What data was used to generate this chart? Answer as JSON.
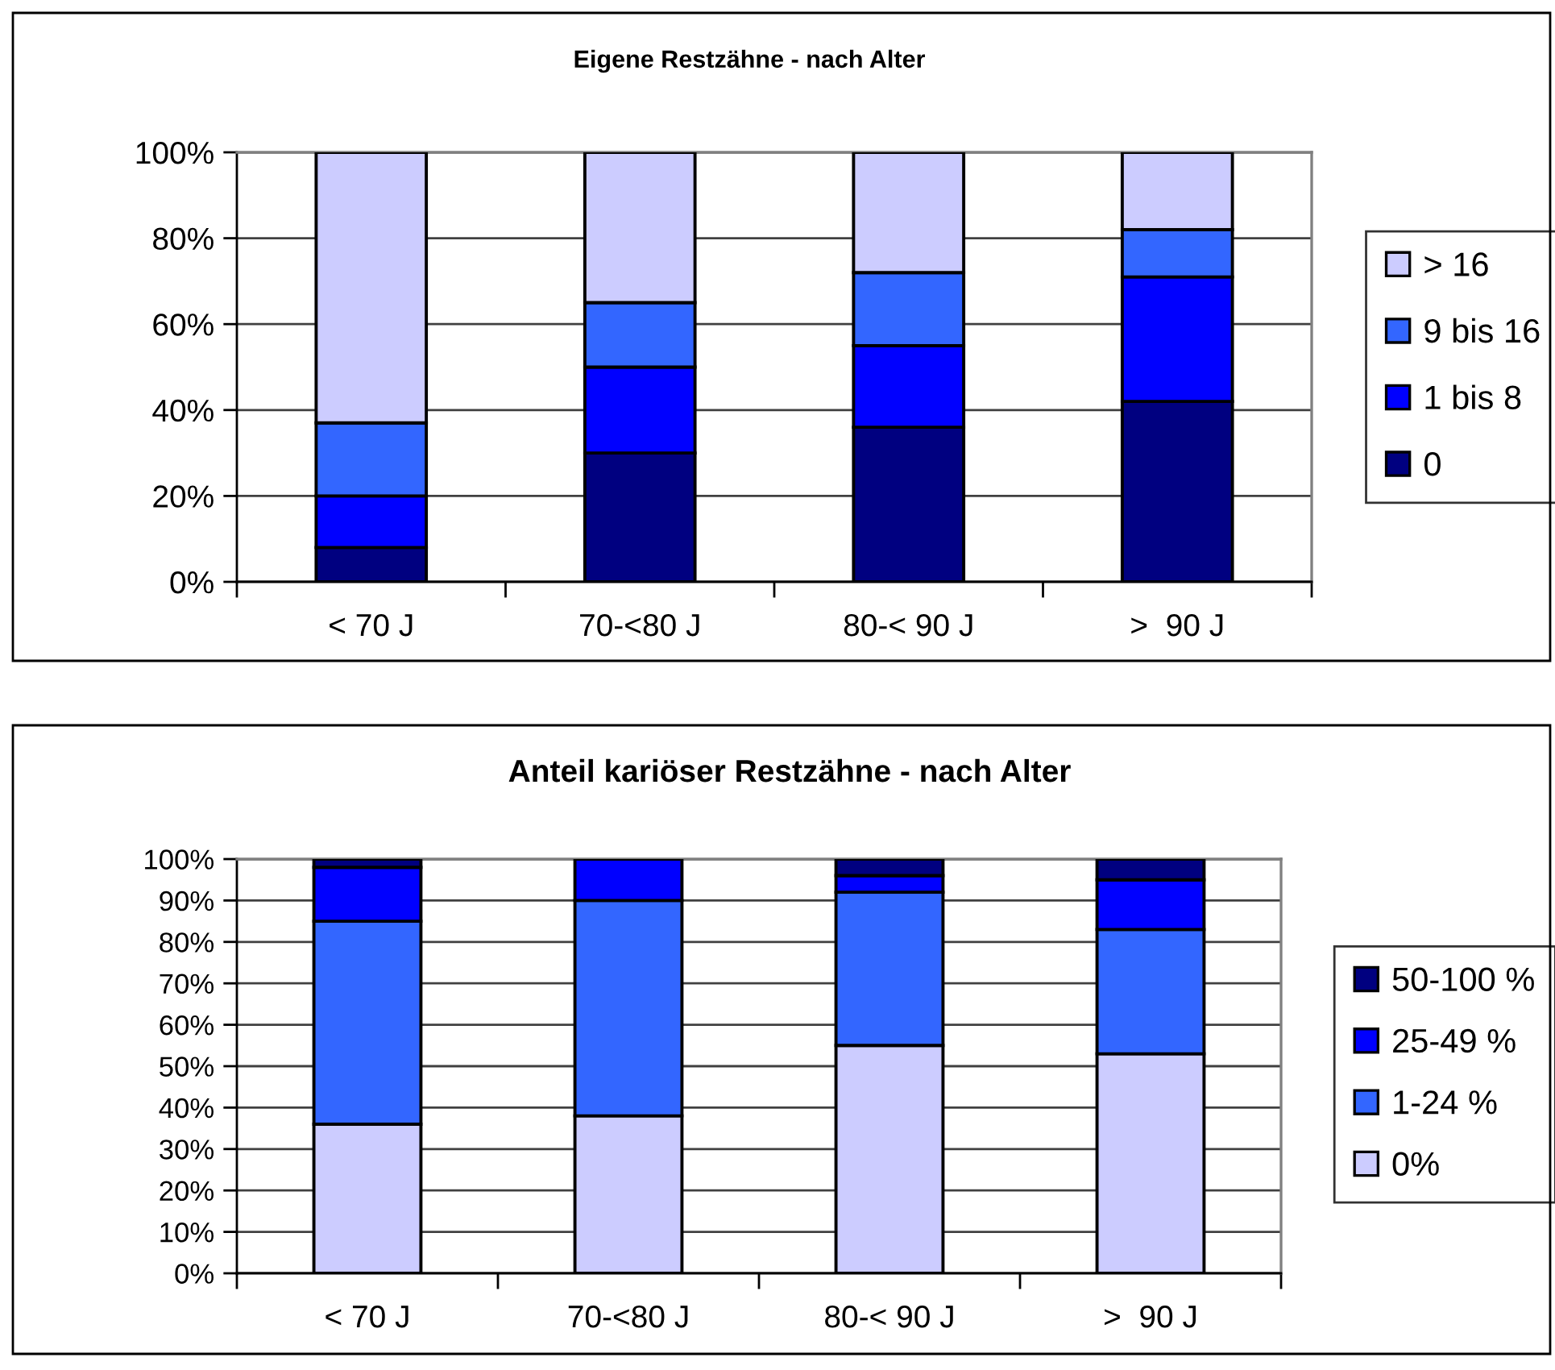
{
  "chart_data": [
    {
      "type": "bar",
      "title": "Eigene Restzähne - nach Alter",
      "stacked": true,
      "categories": [
        "< 70 J",
        "70-<80 J",
        "80-< 90 J",
        ">  90 J"
      ],
      "series": [
        {
          "name": "0",
          "color": "#000080",
          "values": [
            8,
            30,
            36,
            42
          ]
        },
        {
          "name": "1 bis 8",
          "color": "#0000ff",
          "values": [
            12,
            20,
            19,
            29
          ]
        },
        {
          "name": "9 bis 16",
          "color": "#3366ff",
          "values": [
            17,
            15,
            17,
            11
          ]
        },
        {
          "name": "> 16",
          "color": "#ccccff",
          "values": [
            63,
            35,
            28,
            18
          ]
        }
      ],
      "ylim": [
        0,
        100
      ],
      "yticks": [
        {
          "value": 0,
          "label": "0%"
        },
        {
          "value": 20,
          "label": "20%"
        },
        {
          "value": 40,
          "label": "40%"
        },
        {
          "value": 60,
          "label": "60%"
        },
        {
          "value": 80,
          "label": "80%"
        },
        {
          "value": 100,
          "label": "100%"
        }
      ],
      "grid": "y",
      "legend": "right"
    },
    {
      "type": "bar",
      "title": "Anteil kariöser Restzähne - nach Alter",
      "stacked": true,
      "categories": [
        "< 70 J",
        "70-<80 J",
        "80-< 90 J",
        ">  90 J"
      ],
      "series": [
        {
          "name": "0%",
          "color": "#ccccff",
          "values": [
            36,
            38,
            55,
            53
          ]
        },
        {
          "name": "1-24 %",
          "color": "#3366ff",
          "values": [
            49,
            52,
            37,
            30
          ]
        },
        {
          "name": "25-49 %",
          "color": "#0000ff",
          "values": [
            13,
            10,
            4,
            12
          ]
        },
        {
          "name": "50-100 %",
          "color": "#000080",
          "values": [
            2,
            0,
            4,
            5
          ]
        }
      ],
      "ylim": [
        0,
        100
      ],
      "yticks": [
        {
          "value": 0,
          "label": "0%"
        },
        {
          "value": 10,
          "label": "10%"
        },
        {
          "value": 20,
          "label": "20%"
        },
        {
          "value": 30,
          "label": "30%"
        },
        {
          "value": 40,
          "label": "40%"
        },
        {
          "value": 50,
          "label": "50%"
        },
        {
          "value": 60,
          "label": "60%"
        },
        {
          "value": 70,
          "label": "70%"
        },
        {
          "value": 80,
          "label": "80%"
        },
        {
          "value": 90,
          "label": "90%"
        },
        {
          "value": 100,
          "label": "100%"
        }
      ],
      "grid": "y",
      "legend": "right"
    }
  ]
}
